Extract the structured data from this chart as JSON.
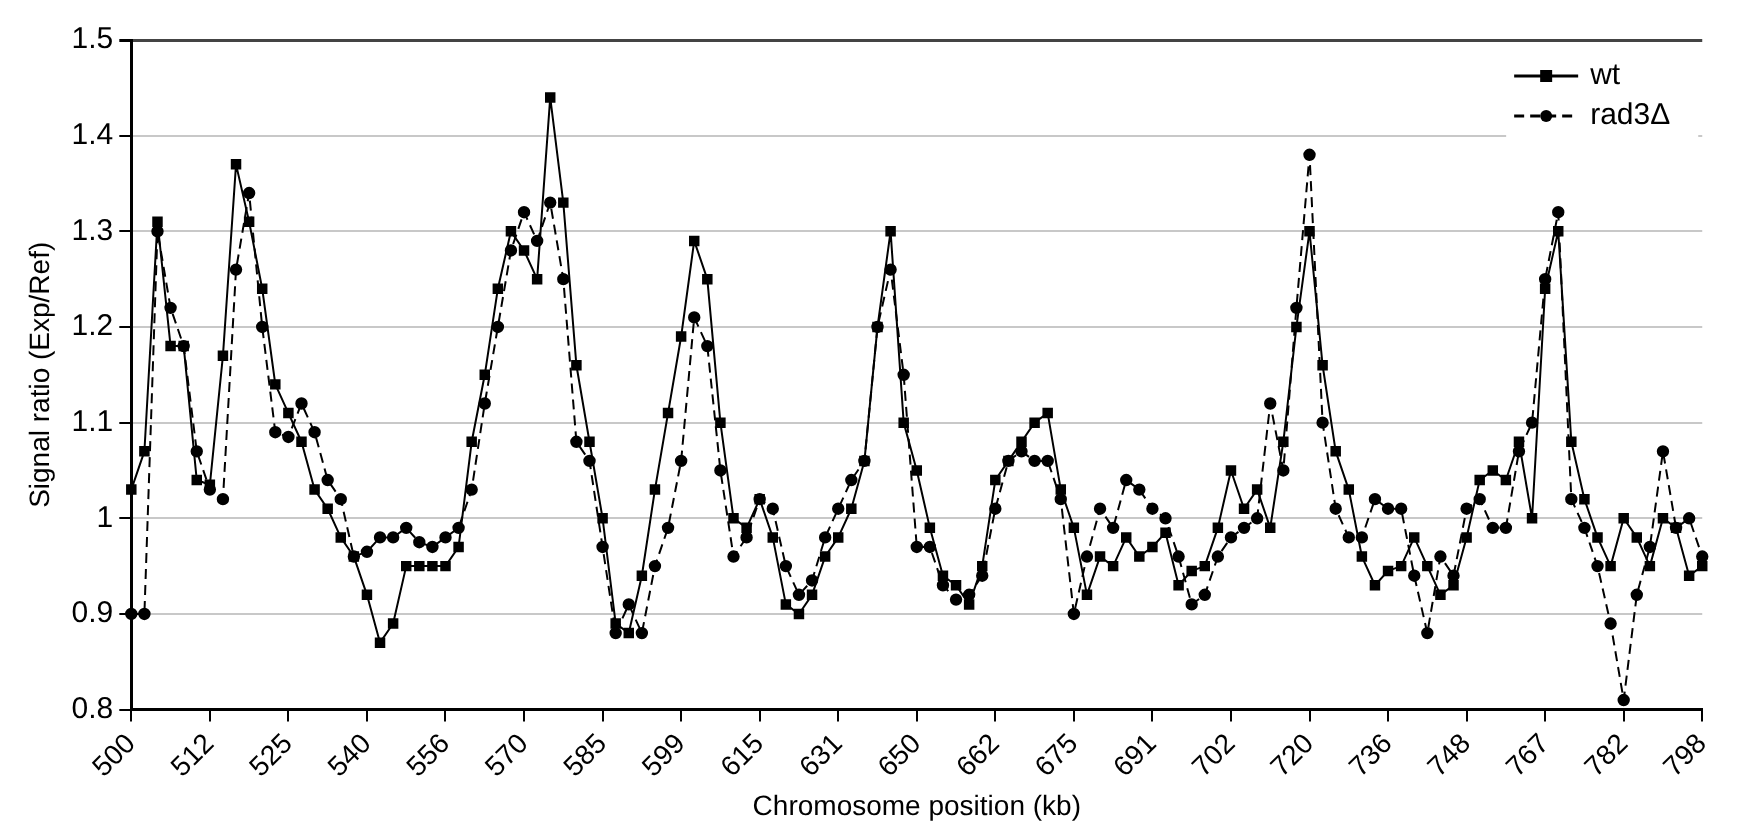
{
  "chart_data": {
    "type": "line",
    "xlabel": "Chromosome position (kb)",
    "ylabel": "Signal ratio (Exp/Ref)",
    "categories": [
      "500",
      null,
      null,
      null,
      null,
      null,
      "512",
      null,
      null,
      null,
      null,
      null,
      "525",
      null,
      null,
      null,
      null,
      null,
      "540",
      null,
      null,
      null,
      null,
      null,
      "556",
      null,
      null,
      null,
      null,
      null,
      "570",
      null,
      null,
      null,
      null,
      null,
      "585",
      null,
      null,
      null,
      null,
      null,
      "599",
      null,
      null,
      null,
      null,
      null,
      "615",
      null,
      null,
      null,
      null,
      null,
      "631",
      null,
      null,
      null,
      null,
      null,
      "650",
      null,
      null,
      null,
      null,
      null,
      "662",
      null,
      null,
      null,
      null,
      null,
      "675",
      null,
      null,
      null,
      null,
      null,
      "691",
      null,
      null,
      null,
      null,
      null,
      "702",
      null,
      null,
      null,
      null,
      null,
      "720",
      null,
      null,
      null,
      null,
      null,
      "736",
      null,
      null,
      null,
      null,
      null,
      "748",
      null,
      null,
      null,
      null,
      null,
      "767",
      null,
      null,
      null,
      null,
      null,
      "782",
      null,
      null,
      null,
      null,
      null,
      "798"
    ],
    "series": [
      {
        "name": "wt",
        "color": "#000000",
        "marker": "square",
        "line_style": "solid",
        "values": [
          1.03,
          1.07,
          1.31,
          1.18,
          1.18,
          1.04,
          1.035,
          1.17,
          1.37,
          1.31,
          1.24,
          1.14,
          1.11,
          1.08,
          1.03,
          1.01,
          0.98,
          0.96,
          0.92,
          0.87,
          0.89,
          0.95,
          0.95,
          0.95,
          0.95,
          0.97,
          1.08,
          1.15,
          1.24,
          1.3,
          1.28,
          1.25,
          1.44,
          1.33,
          1.16,
          1.08,
          1.0,
          0.89,
          0.88,
          0.94,
          1.03,
          1.11,
          1.19,
          1.29,
          1.25,
          1.1,
          1.0,
          0.99,
          1.02,
          0.98,
          0.91,
          0.9,
          0.92,
          0.96,
          0.98,
          1.01,
          1.06,
          1.2,
          1.3,
          1.1,
          1.05,
          0.99,
          0.94,
          0.93,
          0.91,
          0.95,
          1.04,
          1.06,
          1.08,
          1.1,
          1.11,
          1.03,
          0.99,
          0.92,
          0.96,
          0.95,
          0.98,
          0.96,
          0.97,
          0.985,
          0.93,
          0.945,
          0.95,
          0.99,
          1.05,
          1.01,
          1.03,
          0.99,
          1.08,
          1.2,
          1.3,
          1.16,
          1.07,
          1.03,
          0.96,
          0.93,
          0.945,
          0.95,
          0.98,
          0.95,
          0.92,
          0.93,
          0.98,
          1.04,
          1.05,
          1.04,
          1.08,
          1.0,
          1.24,
          1.3,
          1.08,
          1.02,
          0.98,
          0.95,
          1.0,
          0.98,
          0.95,
          1.0,
          0.99,
          0.94,
          0.95
        ]
      },
      {
        "name": "rad3Δ",
        "color": "#000000",
        "marker": "circle",
        "line_style": "dashed",
        "values": [
          0.9,
          0.9,
          1.3,
          1.22,
          1.18,
          1.07,
          1.03,
          1.02,
          1.26,
          1.34,
          1.2,
          1.09,
          1.085,
          1.12,
          1.09,
          1.04,
          1.02,
          0.96,
          0.965,
          0.98,
          0.98,
          0.99,
          0.975,
          0.97,
          0.98,
          0.99,
          1.03,
          1.12,
          1.2,
          1.28,
          1.32,
          1.29,
          1.33,
          1.25,
          1.08,
          1.06,
          0.97,
          0.88,
          0.91,
          0.88,
          0.95,
          0.99,
          1.06,
          1.21,
          1.18,
          1.05,
          0.96,
          0.98,
          1.02,
          1.01,
          0.95,
          0.92,
          0.935,
          0.98,
          1.01,
          1.04,
          1.06,
          1.2,
          1.26,
          1.15,
          0.97,
          0.97,
          0.93,
          0.915,
          0.92,
          0.94,
          1.01,
          1.06,
          1.07,
          1.06,
          1.06,
          1.02,
          0.9,
          0.96,
          1.01,
          0.99,
          1.04,
          1.03,
          1.01,
          1.0,
          0.96,
          0.91,
          0.92,
          0.96,
          0.98,
          0.99,
          1.0,
          1.12,
          1.05,
          1.22,
          1.38,
          1.1,
          1.01,
          0.98,
          0.98,
          1.02,
          1.01,
          1.01,
          0.94,
          0.88,
          0.96,
          0.94,
          1.01,
          1.02,
          0.99,
          0.99,
          1.07,
          1.1,
          1.25,
          1.32,
          1.02,
          0.99,
          0.95,
          0.89,
          0.81,
          0.92,
          0.97,
          1.07,
          0.99,
          1.0,
          0.96
        ]
      }
    ],
    "ylim": [
      0.8,
      1.5
    ],
    "yticks": [
      0.8,
      0.9,
      1,
      1.1,
      1.2,
      1.3,
      1.4,
      1.5
    ],
    "grid": "y",
    "legend": "top right"
  }
}
